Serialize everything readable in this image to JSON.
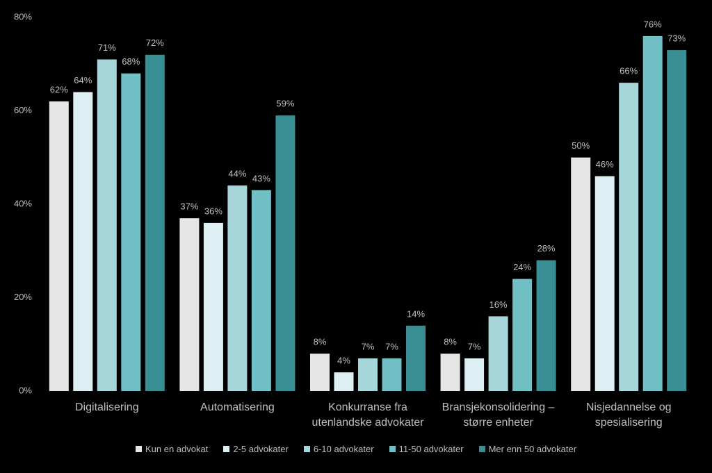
{
  "chart_data": {
    "type": "bar",
    "categories": [
      "Digitalisering",
      "Automatisering",
      "Konkurranse fra utenlandske advokater",
      "Bransjekonsolidering – større enheter",
      "Nisjedannelse og spesialisering"
    ],
    "series": [
      {
        "name": "Kun en advokat",
        "color": "#e6e6e6",
        "values": [
          62,
          37,
          8,
          8,
          50
        ],
        "value_labels": [
          "62%",
          "37%",
          "8%",
          "8%",
          "50%"
        ]
      },
      {
        "name": "2-5 advokater",
        "color": "#ddeff2",
        "values": [
          64,
          36,
          4,
          7,
          46
        ],
        "value_labels": [
          "64%",
          "36%",
          "4%",
          "7%",
          "46%"
        ]
      },
      {
        "name": "6-10 advokater",
        "color": "#a6d6da",
        "values": [
          71,
          44,
          7,
          16,
          66
        ],
        "value_labels": [
          "71%",
          "44%",
          "7%",
          "16%",
          "66%"
        ]
      },
      {
        "name": "11-50 advokater",
        "color": "#70c0c6",
        "values": [
          68,
          43,
          7,
          24,
          76
        ],
        "value_labels": [
          "68%",
          "43%",
          "7%",
          "24%",
          "76%"
        ]
      },
      {
        "name": "Mer enn 50 advokater",
        "color": "#388e93",
        "values": [
          72,
          59,
          14,
          28,
          73
        ],
        "value_labels": [
          "72%",
          "59%",
          "14%",
          "28%",
          "73%"
        ]
      }
    ],
    "ylim": [
      0,
      80
    ],
    "yticks": [
      {
        "value": 0,
        "label": "0%"
      },
      {
        "value": 20,
        "label": "20%"
      },
      {
        "value": 40,
        "label": "40%"
      },
      {
        "value": 60,
        "label": "60%"
      },
      {
        "value": 80,
        "label": "80%"
      }
    ],
    "legend": "bottom"
  }
}
